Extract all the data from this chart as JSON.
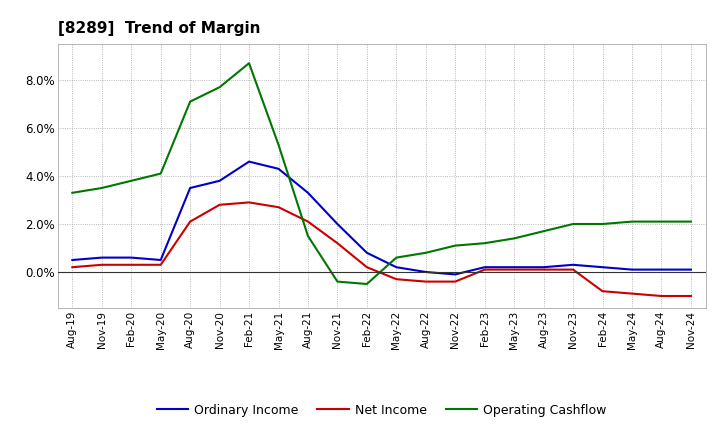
{
  "title": "[8289]  Trend of Margin",
  "x_labels": [
    "Aug-19",
    "Nov-19",
    "Feb-20",
    "May-20",
    "Aug-20",
    "Nov-20",
    "Feb-21",
    "May-21",
    "Aug-21",
    "Nov-21",
    "Feb-22",
    "May-22",
    "Aug-22",
    "Nov-22",
    "Feb-23",
    "May-23",
    "Aug-23",
    "Nov-23",
    "Feb-24",
    "May-24",
    "Aug-24",
    "Nov-24"
  ],
  "ordinary_income": [
    0.005,
    0.006,
    0.006,
    0.005,
    0.035,
    0.038,
    0.046,
    0.043,
    0.033,
    0.02,
    0.008,
    0.002,
    0.0,
    -0.001,
    0.002,
    0.002,
    0.002,
    0.003,
    0.002,
    0.001,
    0.001,
    0.001
  ],
  "net_income": [
    0.002,
    0.003,
    0.003,
    0.003,
    0.021,
    0.028,
    0.029,
    0.027,
    0.021,
    0.012,
    0.002,
    -0.003,
    -0.004,
    -0.004,
    0.001,
    0.001,
    0.001,
    0.001,
    -0.008,
    -0.009,
    -0.01,
    -0.01
  ],
  "operating_cashflow": [
    0.033,
    0.035,
    0.038,
    0.041,
    0.071,
    0.077,
    0.087,
    0.053,
    0.015,
    -0.004,
    -0.005,
    0.006,
    0.008,
    0.011,
    0.012,
    0.014,
    0.017,
    0.02,
    0.02,
    0.021,
    0.021,
    0.021
  ],
  "ylim": [
    -0.015,
    0.095
  ],
  "yticks": [
    0.0,
    0.02,
    0.04,
    0.06,
    0.08
  ],
  "colors": {
    "ordinary_income": "#0000cc",
    "net_income": "#cc0000",
    "operating_cashflow": "#007700"
  },
  "grid_color": "#999999",
  "background_color": "#ffffff",
  "legend_labels": [
    "Ordinary Income",
    "Net Income",
    "Operating Cashflow"
  ]
}
